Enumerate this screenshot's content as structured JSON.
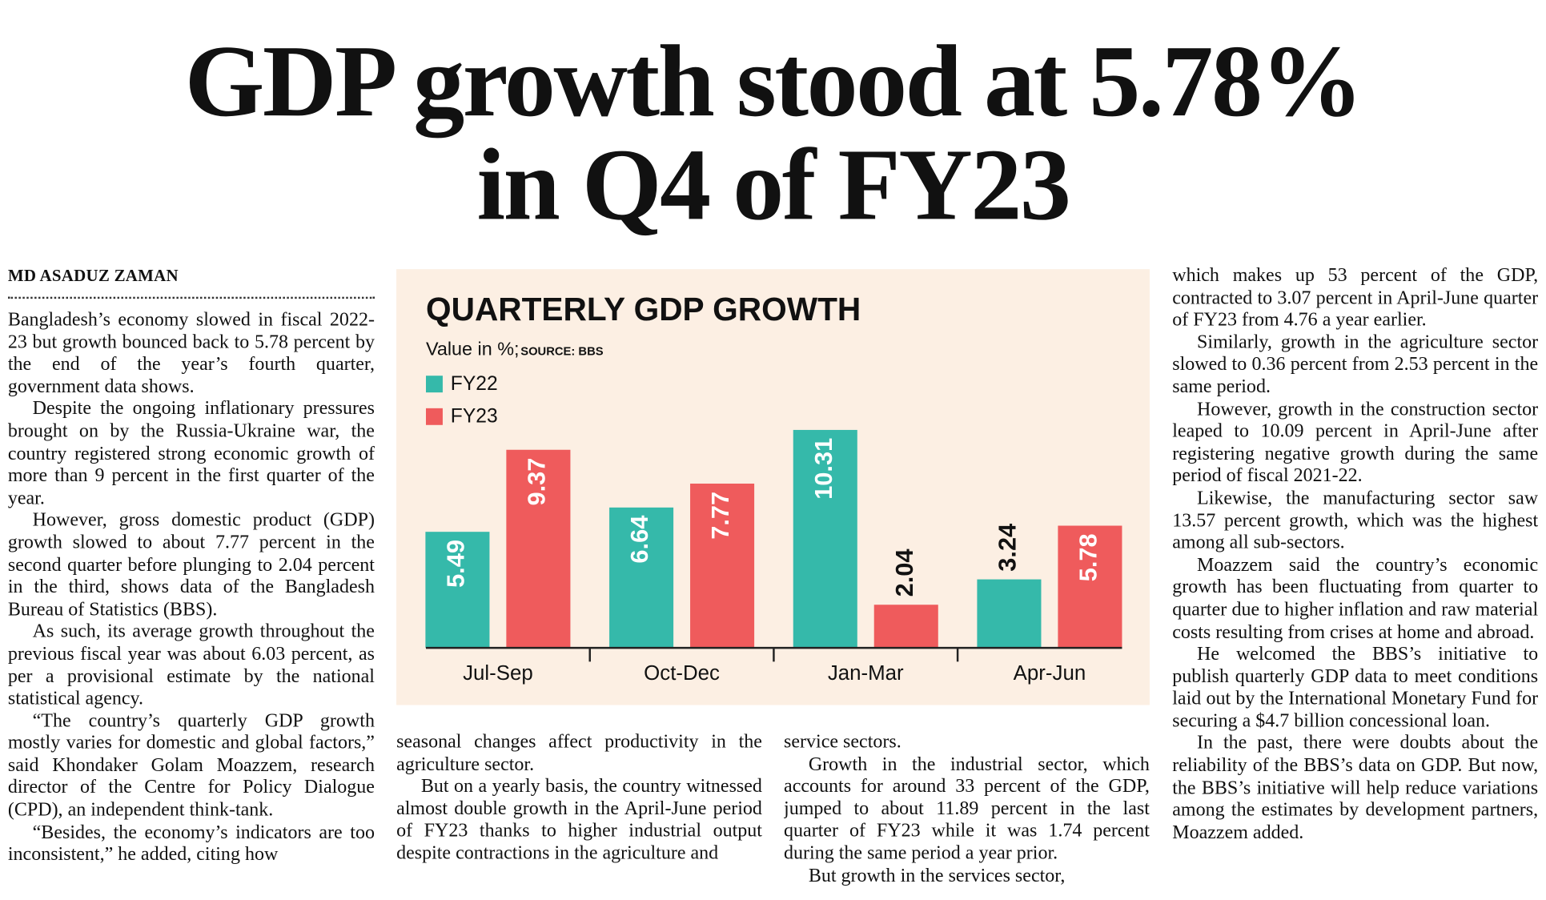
{
  "headline": [
    "GDP growth stood at 5.78%",
    "in Q4 of FY23"
  ],
  "byline": "MD ASADUZ ZAMAN",
  "columns": [
    [
      "Bangladesh’s economy slowed in fiscal 2022-23 but growth bounced back to 5.78 percent by the end of the year’s fourth quarter, government data shows.",
      "Despite the ongoing inflationary pressures brought on by the Russia-Ukraine war, the country registered strong economic growth of more than 9 percent in the first quarter of the year.",
      "However, gross domestic product (GDP) growth slowed to about 7.77 percent in the second quarter before plunging to 2.04 percent in the third, shows data of the Bangladesh Bureau of Statistics (BBS).",
      "As such, its average growth throughout the previous fiscal year was about 6.03 percent, as per a provisional estimate by the national statistical agency.",
      "“The country’s quarterly GDP growth mostly varies for domestic and global factors,” said Khondaker Golam Moazzem, research director of the Centre for Policy Dialogue (CPD), an independent think-tank.",
      "“Besides, the economy’s indicators are too inconsistent,” he added, citing how"
    ],
    [
      "seasonal changes affect productivity in the agriculture sector.",
      "But on a yearly basis, the country witnessed almost double growth in the April-June period of FY23 thanks to higher industrial output despite contractions in the agriculture and"
    ],
    [
      "service sectors.",
      "Growth in the industrial sector, which accounts for around 33 percent of the GDP, jumped to about 11.89 percent in the last quarter of FY23 while it was 1.74 percent during the same period a year prior.",
      "But growth in the services sector,"
    ],
    [
      "which makes up 53 percent of the GDP, contracted to 3.07 percent in April-June quarter of FY23 from 4.76 a year earlier.",
      "Similarly, growth in the agriculture sector slowed to 0.36 percent from 2.53 percent in the same period.",
      "However, growth in the construction sector leaped to 10.09 percent in April-June after registering negative growth during the same period of fiscal 2021-22.",
      "Likewise, the manufacturing sector saw 13.57 percent growth, which was the highest among all sub-sectors.",
      "Moazzem said the country’s economic growth has been fluctuating from quarter to quarter due to higher inflation and raw material costs resulting from crises at home and abroad.",
      "He welcomed the BBS’s initiative to publish quarterly GDP data to meet conditions laid out by the International Monetary Fund for securing a $4.7 billion concessional loan.",
      "In the past, there were doubts about the reliability of the BBS’s data on GDP. But now, the BBS’s initiative will help reduce variations among the estimates by development partners, Moazzem added."
    ]
  ],
  "chart_data": {
    "type": "bar",
    "title": "QUARTERLY GDP GROWTH",
    "subtitle": "Value in %;",
    "source": "SOURCE: BBS",
    "categories": [
      "Jul-Sep",
      "Oct-Dec",
      "Jan-Mar",
      "Apr-Jun"
    ],
    "series": [
      {
        "name": "FY22",
        "color": "#35b9aa",
        "values": [
          5.49,
          6.64,
          10.31,
          3.24
        ]
      },
      {
        "name": "FY23",
        "color": "#ef5b5c",
        "values": [
          9.37,
          7.77,
          2.04,
          5.78
        ]
      }
    ]
  }
}
